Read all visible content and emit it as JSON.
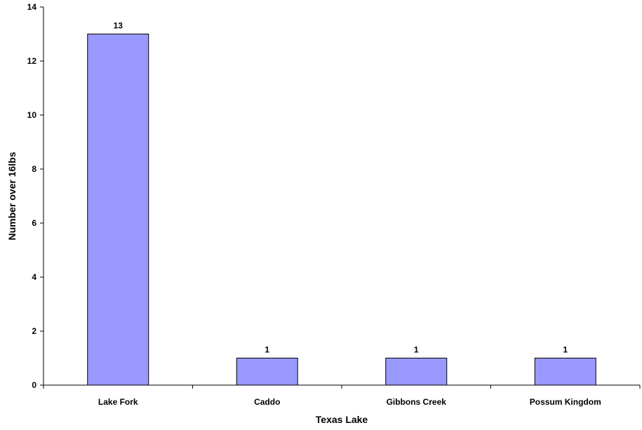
{
  "chart_data": {
    "type": "bar",
    "title": "",
    "xlabel": "Texas Lake",
    "ylabel": "Number over 16lbs",
    "categories": [
      "Lake Fork",
      "Caddo",
      "Gibbons Creek",
      "Possum Kingdom"
    ],
    "values": [
      13,
      1,
      1,
      1
    ],
    "data_labels": [
      "13",
      "1",
      "1",
      "1"
    ],
    "ylim": [
      0,
      14
    ],
    "yticks": [
      0,
      2,
      4,
      6,
      8,
      10,
      12,
      14
    ],
    "grid": false,
    "legend": "none",
    "colors": {
      "bar_fill": "#9999ff",
      "bar_stroke": "#000000",
      "axis": "#000000"
    }
  }
}
